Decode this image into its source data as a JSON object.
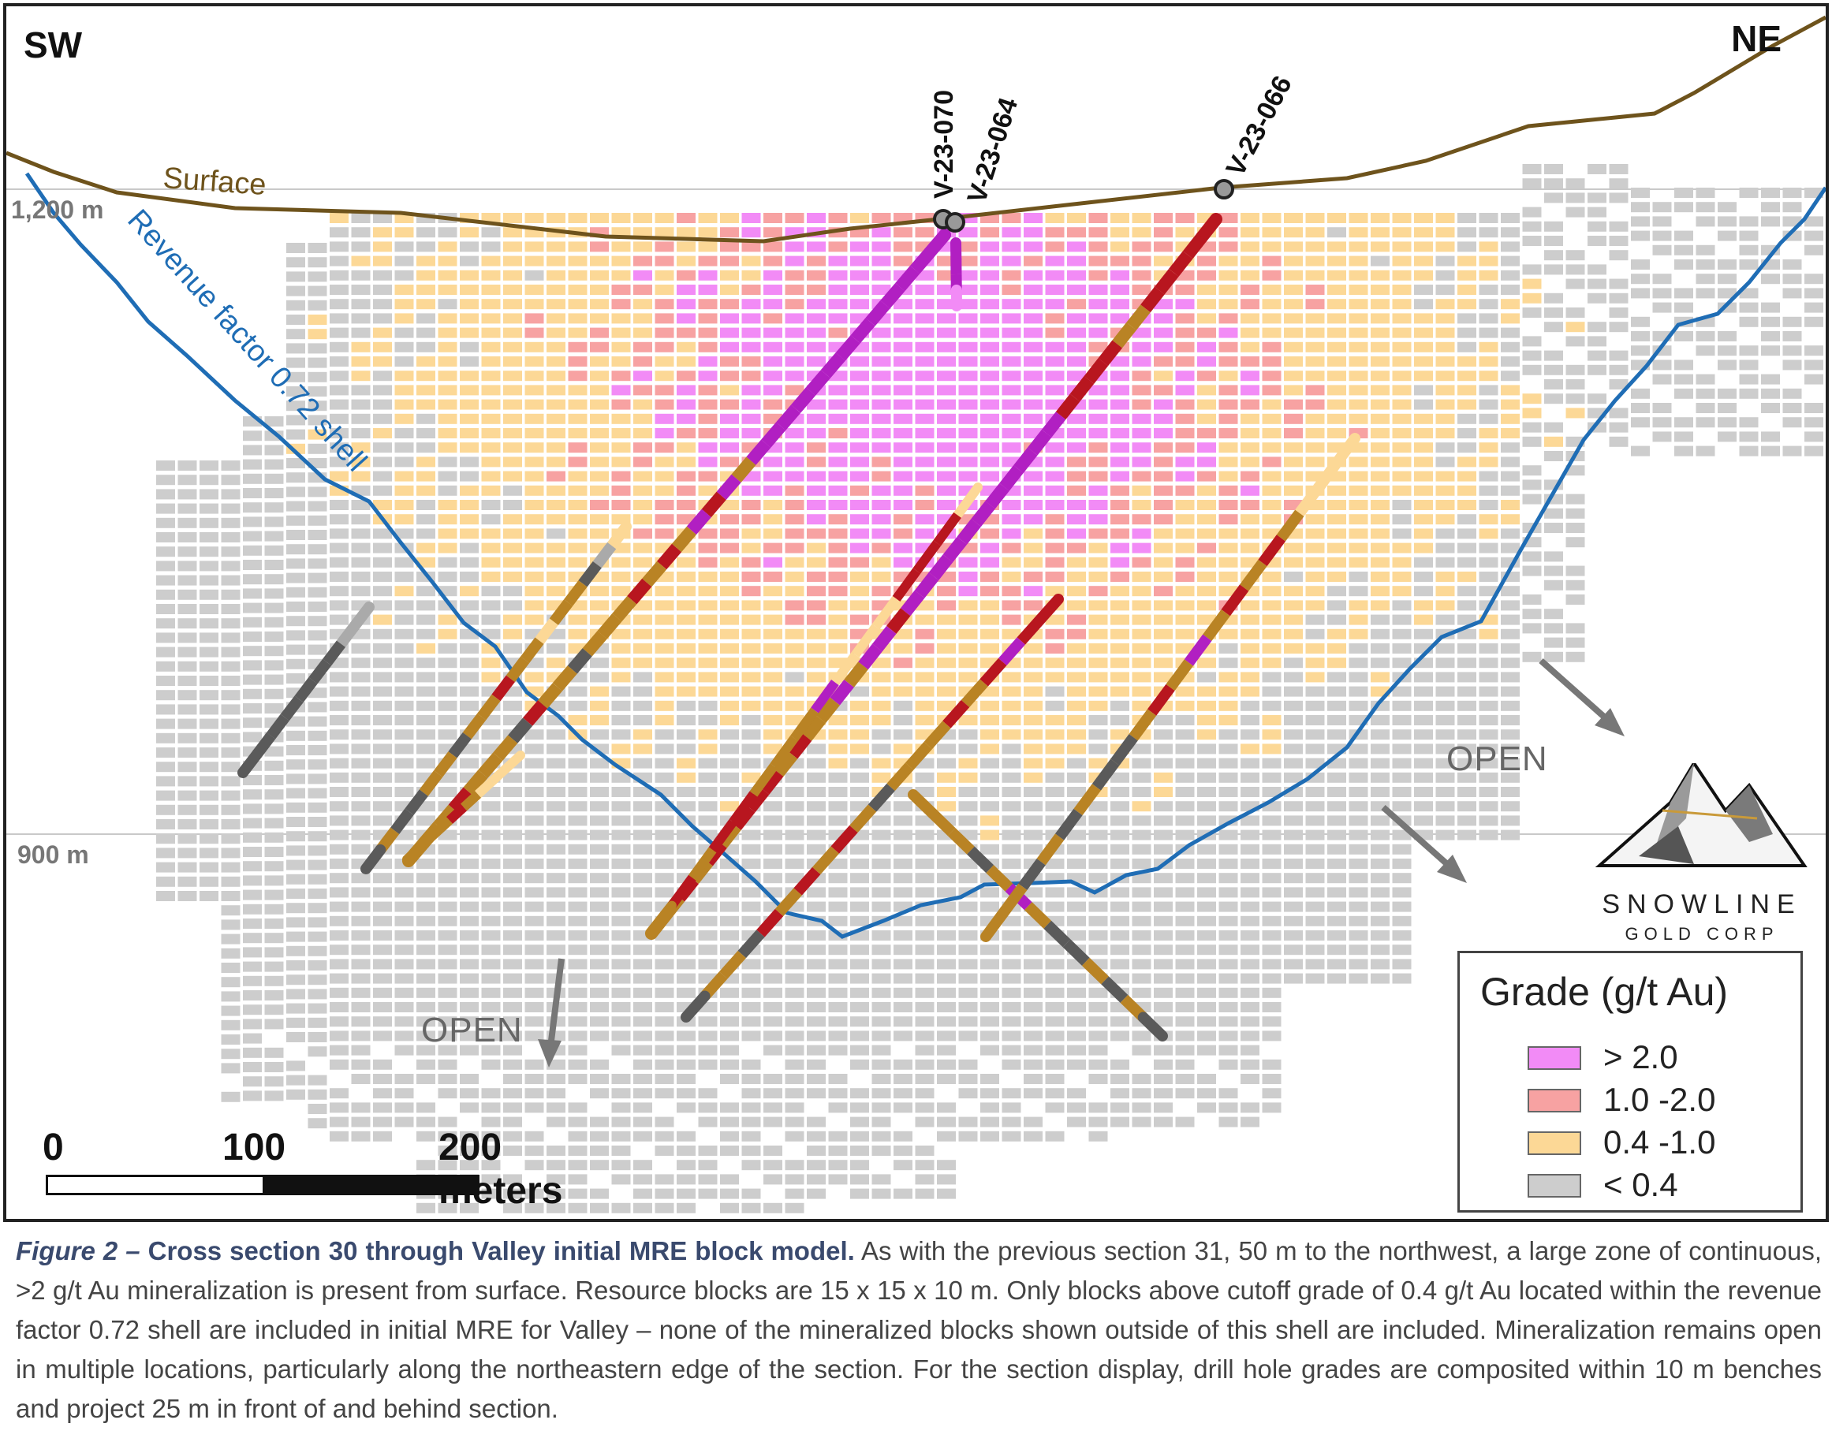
{
  "orientation": {
    "left": "SW",
    "right": "NE"
  },
  "elevations": {
    "upper": "1,200 m",
    "lower": "900 m"
  },
  "surface_label": "Surface",
  "shell_label": "Revenue factor 0.72 shell",
  "drill_holes": {
    "hole_a": "V-23-070",
    "hole_b": "V-23-064",
    "hole_c": "V-23-066"
  },
  "open_labels": {
    "northeast": "OPEN",
    "bottom": "OPEN"
  },
  "scale_bar": {
    "tick_0": "0",
    "tick_100": "100",
    "tick_200": "200 meters"
  },
  "legend": {
    "title": "Grade (g/t Au)",
    "items": [
      {
        "label": "> 2.0",
        "color": "#f28bf6"
      },
      {
        "label": "1.0 -2.0",
        "color": "#f7a2a2"
      },
      {
        "label": "0.4 -1.0",
        "color": "#fcd896"
      },
      {
        "label": "< 0.4",
        "color": "#cdcdcd"
      }
    ]
  },
  "logo": {
    "name": "SNOWLINE",
    "subtitle": "GOLD CORP"
  },
  "colors": {
    "surface_line": "#6e531c",
    "shell_line": "#1f6db5",
    "hole_gold": "#b98324",
    "hole_red": "#b8161f",
    "hole_magenta": "#b11fc2",
    "hole_gray": "#5a5a5a",
    "arrow": "#777777"
  },
  "caption": {
    "lead": "Figure 2 –",
    "title": "Cross section 30 through Valley initial MRE block model.",
    "body": "As with the previous section 31, 50 m to the northwest, a large zone of continuous, >2 g/t Au mineralization is present from surface. Resource blocks are 15 x 15 x 10 m. Only blocks above cutoff grade of 0.4 g/t Au located within the revenue factor 0.72 shell are included in initial MRE for Valley – none of the mineralized blocks shown outside of this shell are included. Mineralization remains open in multiple locations, particularly along the northeastern edge of the section. For the section display, drill hole grades are composited within 10 m benches and project 25 m in front of and behind section."
  }
}
